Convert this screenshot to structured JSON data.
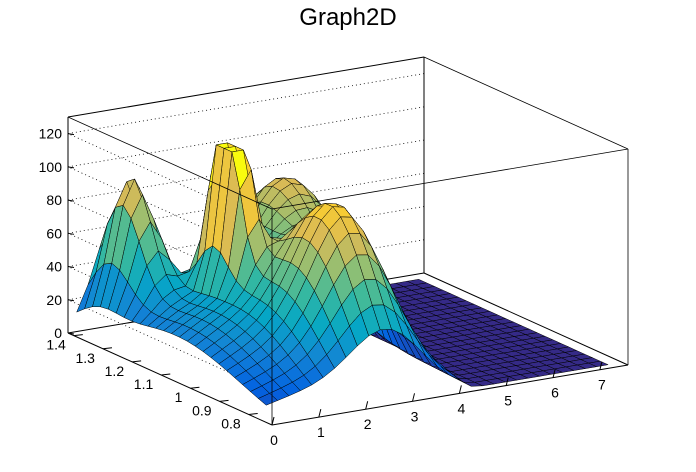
{
  "chart_data": {
    "type": "surface",
    "title": "Graph2D",
    "x_ticks": [
      "0",
      "1",
      "2",
      "3",
      "4",
      "5",
      "6",
      "7"
    ],
    "y_ticks": [
      "0.8",
      "0.9",
      "1",
      "1.1",
      "1.2",
      "1.3",
      "1.4"
    ],
    "z_ticks": [
      "0",
      "20",
      "40",
      "60",
      "80",
      "100",
      "120"
    ],
    "xlim": [
      0,
      7.6
    ],
    "ylim": [
      0.72,
      1.42
    ],
    "zlim": [
      0,
      130
    ],
    "grid": true,
    "palette": [
      "#352a87",
      "#0363e1",
      "#1485d4",
      "#06a7c6",
      "#38b99e",
      "#92bf73",
      "#d9ba56",
      "#fcce2e",
      "#f9fb0e"
    ],
    "peaks": [
      {
        "x": 0.7,
        "y": 1.32,
        "z": 80
      },
      {
        "x": 1.6,
        "y": 1.12,
        "z": 125
      },
      {
        "x": 2.6,
        "y": 0.9,
        "z": 85
      },
      {
        "x": 3.6,
        "y": 1.2,
        "z": 70
      }
    ]
  }
}
